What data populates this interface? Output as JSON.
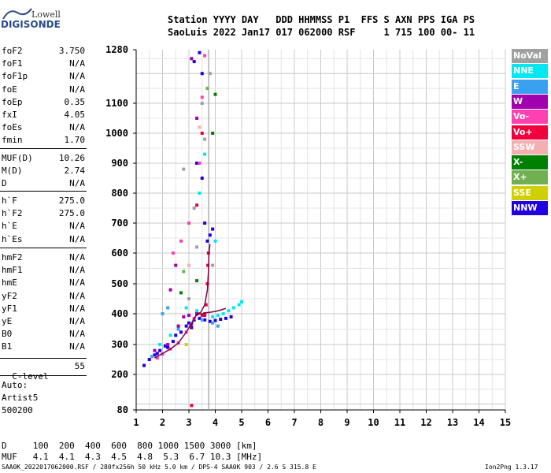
{
  "logo": {
    "line1": "Lowell",
    "line2": "DIGISONDE"
  },
  "header": {
    "row1": "Station YYYY DAY   DDD HHMMSS P1  FFS S AXN PPS IGA PS",
    "row2": "SaoLuis 2022 Jan17 017 062000 RSF     1 715 100 00- 11"
  },
  "params_group1": [
    {
      "label": "foF2",
      "value": "3.750"
    },
    {
      "label": "foF1",
      "value": "N/A"
    },
    {
      "label": "foF1p",
      "value": "N/A"
    },
    {
      "label": "foE",
      "value": "N/A"
    },
    {
      "label": "foEp",
      "value": "0.35"
    },
    {
      "label": "fxI",
      "value": "4.05"
    },
    {
      "label": "foEs",
      "value": "N/A"
    },
    {
      "label": "fmin",
      "value": "1.70"
    }
  ],
  "params_group2": [
    {
      "label": "MUF(D)",
      "value": "10.26"
    },
    {
      "label": "M(D)",
      "value": "2.74"
    },
    {
      "label": "D",
      "value": "N/A"
    }
  ],
  "params_group3": [
    {
      "label": "h`F",
      "value": "275.0"
    },
    {
      "label": "h`F2",
      "value": "275.0"
    },
    {
      "label": "h`E",
      "value": "N/A"
    },
    {
      "label": "h`Es",
      "value": "N/A"
    }
  ],
  "params_group4": [
    {
      "label": "hmF2",
      "value": "N/A"
    },
    {
      "label": "hmF1",
      "value": "N/A"
    },
    {
      "label": "hmE",
      "value": "N/A"
    },
    {
      "label": "yF2",
      "value": "N/A"
    },
    {
      "label": "yF1",
      "value": "N/A"
    },
    {
      "label": "yE",
      "value": "N/A"
    },
    {
      "label": "B0",
      "value": "N/A"
    },
    {
      "label": "B1",
      "value": "N/A"
    }
  ],
  "clevel": {
    "label": "C-level",
    "value": "55"
  },
  "autoscale": {
    "line1": "Auto:",
    "line2": "Artist5",
    "line3": "500200"
  },
  "legend": [
    {
      "label": "NoVal",
      "color": "#a0a0a0"
    },
    {
      "label": "NNE",
      "color": "#00e8f0"
    },
    {
      "label": "E",
      "color": "#3aa0f0"
    },
    {
      "label": "W",
      "color": "#a000b0"
    },
    {
      "label": "Vo-",
      "color": "#ff40b0"
    },
    {
      "label": "Vo+",
      "color": "#f0003c"
    },
    {
      "label": "SSW",
      "color": "#f4b0b0"
    },
    {
      "label": "X-",
      "color": "#008000"
    },
    {
      "label": "X+",
      "color": "#70b050"
    },
    {
      "label": "SSE",
      "color": "#d0d000"
    },
    {
      "label": "NNW",
      "color": "#2000e0"
    }
  ],
  "muf_table": {
    "row1": "D     100  200  400  600  800 1000 1500 3000 [km]",
    "row2": "MUF   4.1  4.1  4.3  4.5  4.8  5.3  6.7 10.3 [MHz]"
  },
  "footer": {
    "left": "SAA0K_2022017062000.RSF / 280fx256h 50 kHz 5.0 km / DPS-4 SAA0K 903 / 2.6 S 315.8 E",
    "right": "Ion2Png 1.3.17"
  },
  "chart_data": {
    "type": "scatter",
    "title": "",
    "xlabel": "",
    "ylabel": "",
    "xlim": [
      1,
      15
    ],
    "ylim": [
      80,
      1280
    ],
    "x_ticks": [
      "1",
      "2",
      "3",
      "4",
      "5",
      "6",
      "7",
      "8",
      "9",
      "10",
      "11",
      "12",
      "13",
      "14",
      "15"
    ],
    "y_ticks": [
      "80",
      "200",
      "300",
      "400",
      "500",
      "600",
      "700",
      "800",
      "900",
      "1000",
      "1100",
      "1280"
    ],
    "grid": true,
    "reference_line_x": 3.75,
    "series": [
      {
        "name": "NNW",
        "color": "#2000e0",
        "points": [
          [
            1.3,
            230
          ],
          [
            1.5,
            250
          ],
          [
            1.7,
            265
          ],
          [
            1.9,
            280
          ],
          [
            2.1,
            295
          ],
          [
            2.4,
            310
          ],
          [
            2.7,
            340
          ],
          [
            3.0,
            370
          ],
          [
            3.2,
            380
          ],
          [
            3.4,
            385
          ],
          [
            3.6,
            380
          ],
          [
            3.8,
            375
          ],
          [
            4.0,
            378
          ],
          [
            4.2,
            382
          ],
          [
            4.4,
            385
          ],
          [
            3.7,
            640
          ],
          [
            3.8,
            660
          ],
          [
            3.9,
            680
          ],
          [
            3.6,
            700
          ],
          [
            3.5,
            1200
          ],
          [
            3.2,
            1240
          ],
          [
            3.4,
            1270
          ],
          [
            3.3,
            900
          ],
          [
            3.5,
            850
          ],
          [
            2.9,
            360
          ],
          [
            3.1,
            355
          ],
          [
            2.5,
            330
          ],
          [
            1.8,
            270
          ],
          [
            2.2,
            290
          ],
          [
            4.6,
            390
          ]
        ]
      },
      {
        "name": "NNE",
        "color": "#00e8f0",
        "points": [
          [
            3.9,
            390
          ],
          [
            4.1,
            395
          ],
          [
            4.3,
            400
          ],
          [
            4.5,
            410
          ],
          [
            4.7,
            420
          ],
          [
            4.9,
            430
          ],
          [
            5.0,
            440
          ],
          [
            3.3,
            410
          ],
          [
            2.3,
            330
          ],
          [
            1.9,
            300
          ],
          [
            2.9,
            420
          ],
          [
            3.6,
            930
          ],
          [
            4.0,
            640
          ],
          [
            3.4,
            800
          ]
        ]
      },
      {
        "name": "E",
        "color": "#3aa0f0",
        "points": [
          [
            2.0,
            400
          ],
          [
            2.2,
            420
          ],
          [
            3.5,
            380
          ],
          [
            3.9,
            370
          ],
          [
            4.1,
            360
          ],
          [
            1.6,
            260
          ],
          [
            2.6,
            350
          ]
        ]
      },
      {
        "name": "W",
        "color": "#a000b0",
        "points": [
          [
            2.6,
            360
          ],
          [
            2.8,
            390
          ],
          [
            3.0,
            395
          ],
          [
            3.3,
            400
          ],
          [
            3.6,
            395
          ],
          [
            2.3,
            480
          ],
          [
            2.5,
            560
          ],
          [
            3.1,
            1250
          ],
          [
            3.3,
            1050
          ],
          [
            2.2,
            300
          ],
          [
            1.7,
            280
          ]
        ]
      },
      {
        "name": "Vo-",
        "color": "#ff40b0",
        "points": [
          [
            1.8,
            255
          ],
          [
            2.0,
            268
          ],
          [
            2.3,
            285
          ],
          [
            2.6,
            305
          ],
          [
            2.9,
            340
          ],
          [
            3.1,
            365
          ],
          [
            3.2,
            385
          ],
          [
            3.4,
            900
          ],
          [
            3.5,
            1120
          ],
          [
            2.4,
            600
          ],
          [
            2.7,
            640
          ],
          [
            3.0,
            700
          ],
          [
            3.6,
            1260
          ]
        ]
      },
      {
        "name": "Vo+",
        "color": "#f0003c",
        "points": [
          [
            3.5,
            395
          ],
          [
            3.6,
            400
          ],
          [
            3.65,
            430
          ],
          [
            3.7,
            500
          ],
          [
            3.72,
            560
          ],
          [
            3.74,
            600
          ],
          [
            3.1,
            95
          ],
          [
            3.3,
            760
          ],
          [
            3.5,
            1000
          ]
        ]
      },
      {
        "name": "X-",
        "color": "#008000",
        "points": [
          [
            3.3,
            510
          ],
          [
            3.9,
            1000
          ],
          [
            2.7,
            470
          ],
          [
            4.0,
            1130
          ]
        ]
      },
      {
        "name": "X+",
        "color": "#70b050",
        "points": [
          [
            2.8,
            540
          ],
          [
            3.7,
            1150
          ]
        ]
      },
      {
        "name": "SSW",
        "color": "#f4b0b0",
        "points": [
          [
            3.0,
            560
          ],
          [
            3.4,
            1020
          ]
        ]
      },
      {
        "name": "SSE",
        "color": "#d0d000",
        "points": [
          [
            2.9,
            300
          ]
        ]
      },
      {
        "name": "NoVal",
        "color": "#a0a0a0",
        "points": [
          [
            3.0,
            450
          ],
          [
            3.3,
            620
          ],
          [
            3.5,
            1100
          ],
          [
            3.8,
            1200
          ],
          [
            2.8,
            880
          ],
          [
            3.2,
            750
          ],
          [
            3.6,
            980
          ],
          [
            3.9,
            560
          ]
        ]
      }
    ],
    "traces": [
      {
        "color": "#800040",
        "points": [
          [
            1.7,
            255
          ],
          [
            2.0,
            270
          ],
          [
            2.3,
            285
          ],
          [
            2.6,
            305
          ],
          [
            2.9,
            340
          ],
          [
            3.1,
            370
          ],
          [
            3.25,
            392
          ],
          [
            3.4,
            400
          ],
          [
            3.55,
            400
          ],
          [
            3.6,
            402
          ]
        ]
      },
      {
        "color": "#800040",
        "points": [
          [
            3.05,
            350
          ],
          [
            3.2,
            385
          ],
          [
            3.3,
            398
          ],
          [
            3.45,
            405
          ],
          [
            3.6,
            430
          ],
          [
            3.7,
            480
          ],
          [
            3.74,
            540
          ],
          [
            3.76,
            600
          ],
          [
            3.8,
            630
          ]
        ]
      },
      {
        "color": "#800040",
        "points": [
          [
            3.6,
            403
          ],
          [
            3.8,
            405
          ],
          [
            4.0,
            408
          ],
          [
            4.2,
            412
          ],
          [
            4.4,
            418
          ]
        ]
      }
    ]
  }
}
